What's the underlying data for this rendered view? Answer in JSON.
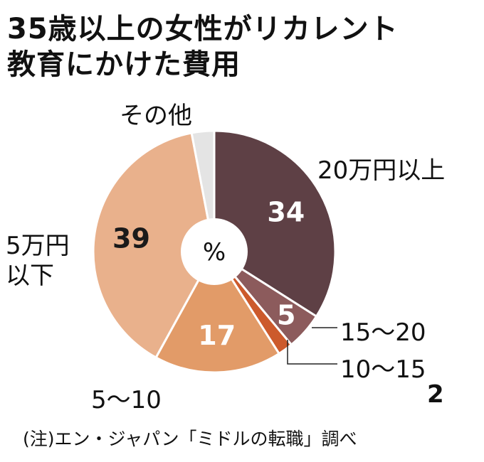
{
  "chart_data": {
    "type": "pie",
    "title": [
      "35歳以上の女性がリカレント",
      "教育にかけた費用"
    ],
    "unit": "%",
    "slices": [
      {
        "label": "20万円以上",
        "value": 34,
        "value_label": "34",
        "color": "#5e4045"
      },
      {
        "label": "15〜20",
        "value": 5,
        "value_label": "5",
        "color": "#8c5b5c"
      },
      {
        "label": "10〜15",
        "value": 2,
        "value_label": "2",
        "color": "#cc5a2c"
      },
      {
        "label": "5〜10",
        "value": 17,
        "value_label": "17",
        "color": "#e29b68"
      },
      {
        "label": "5万円以下",
        "value": 39,
        "value_label": "39",
        "color": "#e9b18c"
      },
      {
        "label": "その他",
        "value": 3,
        "value_label": "",
        "color": "#e4e4e4"
      }
    ],
    "note": "(注)エン・ジャパン「ミドルの転職」調べ"
  }
}
